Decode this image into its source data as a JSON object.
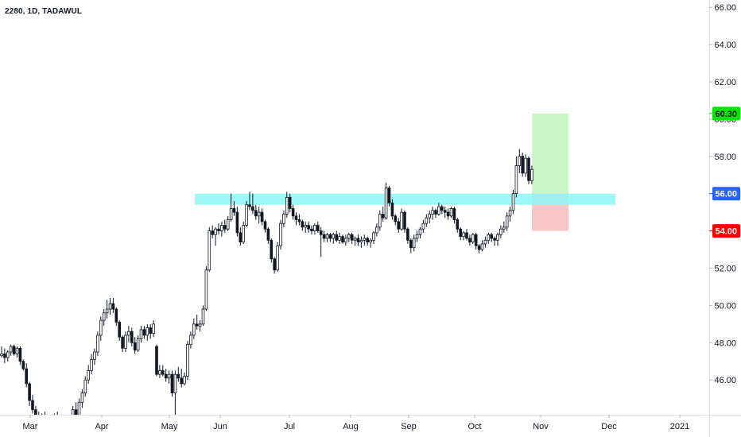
{
  "symbol_label": "2280, 1D, TADAWUL",
  "colors": {
    "up_border": "#131722",
    "down_fill": "#131722",
    "zone": "#8ef7f7",
    "profit": "#c8f7c5",
    "loss": "#f7c5c5",
    "target_tag": "#00e600",
    "entry_tag": "#2962ff",
    "stop_tag": "#ff0000"
  },
  "chart_data": {
    "type": "candlestick",
    "title": "",
    "y_ticks": [
      "46.00",
      "48.00",
      "50.00",
      "52.00",
      "54.00",
      "56.00",
      "58.00",
      "60.00",
      "62.00",
      "64.00",
      "66.00"
    ],
    "x_ticks": [
      "Mar",
      "Apr",
      "May",
      "Jun",
      "Jul",
      "Aug",
      "Sep",
      "Oct",
      "Nov",
      "Dec",
      "2021"
    ],
    "ylim": [
      44.1,
      66.2
    ],
    "price_tags": [
      {
        "label": "60.30",
        "value": 60.3,
        "role": "target"
      },
      {
        "label": "56.00",
        "value": 56.0,
        "role": "entry"
      },
      {
        "label": "54.00",
        "value": 54.0,
        "role": "stop"
      }
    ],
    "zone": {
      "from": 55.4,
      "to": 56.0
    },
    "position": {
      "entry": 56.0,
      "target": 60.3,
      "stop": 54.0
    },
    "candles": [
      [
        47.3,
        47.8,
        47.2,
        47.4
      ],
      [
        47.4,
        47.7,
        46.9,
        47.2
      ],
      [
        47.2,
        47.6,
        47.0,
        47.5
      ],
      [
        47.5,
        47.9,
        47.3,
        47.8
      ],
      [
        47.8,
        47.9,
        47.3,
        47.4
      ],
      [
        47.4,
        47.8,
        47.2,
        47.7
      ],
      [
        47.7,
        47.8,
        46.8,
        47.0
      ],
      [
        47.0,
        47.1,
        46.5,
        46.6
      ],
      [
        46.6,
        46.9,
        45.6,
        45.8
      ],
      [
        45.8,
        45.9,
        44.6,
        44.9
      ],
      [
        44.9,
        45.2,
        44.2,
        44.4
      ],
      [
        44.4,
        44.6,
        43.9,
        44.0
      ],
      [
        44.0,
        44.3,
        43.5,
        43.6
      ],
      [
        43.6,
        44.2,
        43.3,
        44.1
      ],
      [
        44.1,
        44.3,
        43.6,
        43.8
      ],
      [
        43.8,
        44.1,
        43.2,
        43.4
      ],
      [
        43.4,
        43.8,
        43.0,
        43.7
      ],
      [
        43.7,
        44.2,
        43.5,
        44.0
      ],
      [
        44.0,
        44.3,
        43.3,
        43.5
      ],
      [
        43.5,
        43.8,
        43.0,
        43.2
      ],
      [
        43.2,
        43.6,
        42.9,
        43.4
      ],
      [
        43.4,
        43.7,
        43.0,
        43.3
      ],
      [
        43.3,
        44.0,
        43.2,
        43.9
      ],
      [
        43.9,
        44.6,
        43.6,
        44.4
      ],
      [
        44.4,
        44.8,
        43.9,
        44.1
      ],
      [
        44.1,
        45.0,
        44.0,
        44.8
      ],
      [
        44.8,
        45.5,
        44.5,
        45.3
      ],
      [
        45.3,
        46.2,
        45.1,
        46.0
      ],
      [
        46.0,
        46.8,
        45.8,
        46.5
      ],
      [
        46.5,
        47.4,
        46.3,
        47.1
      ],
      [
        47.1,
        47.7,
        46.8,
        47.5
      ],
      [
        47.5,
        48.6,
        47.3,
        48.4
      ],
      [
        48.4,
        49.4,
        48.1,
        49.2
      ],
      [
        49.2,
        49.8,
        48.9,
        49.6
      ],
      [
        49.6,
        50.3,
        49.3,
        49.8
      ],
      [
        49.8,
        50.4,
        49.5,
        50.1
      ],
      [
        50.1,
        50.4,
        49.6,
        49.8
      ],
      [
        49.8,
        49.9,
        48.9,
        49.1
      ],
      [
        49.1,
        49.2,
        48.1,
        48.3
      ],
      [
        48.3,
        48.4,
        47.5,
        47.7
      ],
      [
        47.7,
        48.6,
        47.5,
        48.4
      ],
      [
        48.4,
        48.9,
        48.0,
        48.6
      ],
      [
        48.6,
        48.8,
        47.8,
        48.0
      ],
      [
        48.0,
        48.3,
        47.4,
        47.6
      ],
      [
        47.6,
        48.4,
        47.5,
        48.2
      ],
      [
        48.2,
        48.9,
        48.0,
        48.7
      ],
      [
        48.7,
        48.9,
        48.2,
        48.4
      ],
      [
        48.4,
        49.0,
        48.1,
        48.8
      ],
      [
        48.8,
        49.0,
        48.2,
        48.5
      ],
      [
        48.5,
        49.2,
        48.3,
        49.0
      ],
      [
        47.8,
        47.9,
        46.2,
        46.3
      ],
      [
        46.3,
        46.8,
        46.1,
        46.5
      ],
      [
        46.5,
        46.8,
        46.2,
        46.3
      ],
      [
        46.3,
        46.6,
        45.9,
        46.1
      ],
      [
        46.1,
        46.5,
        45.8,
        46.3
      ],
      [
        46.3,
        46.5,
        45.1,
        45.3
      ],
      [
        45.3,
        46.5,
        43.7,
        46.3
      ],
      [
        46.3,
        46.7,
        45.9,
        46.1
      ],
      [
        46.1,
        46.6,
        45.6,
        45.8
      ],
      [
        45.8,
        46.4,
        45.7,
        46.2
      ],
      [
        46.2,
        48.1,
        46.0,
        47.9
      ],
      [
        47.9,
        48.6,
        47.7,
        48.4
      ],
      [
        48.4,
        49.3,
        48.2,
        49.0
      ],
      [
        49.0,
        49.5,
        48.7,
        48.9
      ],
      [
        48.9,
        49.2,
        48.6,
        49.0
      ],
      [
        49.0,
        50.0,
        48.9,
        49.8
      ],
      [
        49.8,
        52.1,
        49.7,
        51.9
      ],
      [
        51.9,
        54.2,
        51.8,
        54.0
      ],
      [
        54.0,
        54.3,
        53.6,
        53.8
      ],
      [
        53.8,
        54.2,
        53.2,
        54.1
      ],
      [
        54.1,
        54.4,
        53.8,
        54.0
      ],
      [
        54.0,
        54.5,
        53.7,
        54.3
      ],
      [
        54.3,
        54.6,
        53.9,
        54.1
      ],
      [
        54.1,
        54.8,
        54.0,
        54.6
      ],
      [
        54.6,
        56.0,
        54.5,
        55.2
      ],
      [
        55.2,
        55.6,
        54.8,
        55.0
      ],
      [
        55.0,
        55.3,
        53.7,
        53.9
      ],
      [
        53.9,
        54.2,
        53.2,
        53.4
      ],
      [
        53.4,
        54.5,
        53.3,
        54.3
      ],
      [
        54.3,
        55.6,
        54.2,
        55.4
      ],
      [
        55.4,
        56.1,
        55.1,
        55.3
      ],
      [
        55.3,
        56.0,
        54.9,
        55.1
      ],
      [
        55.1,
        55.4,
        54.6,
        54.8
      ],
      [
        54.8,
        55.3,
        54.4,
        55.0
      ],
      [
        55.0,
        55.2,
        54.3,
        54.5
      ],
      [
        54.5,
        54.6,
        53.9,
        54.1
      ],
      [
        54.1,
        54.2,
        53.3,
        53.5
      ],
      [
        53.5,
        53.6,
        52.3,
        52.5
      ],
      [
        52.5,
        52.6,
        51.7,
        51.9
      ],
      [
        51.9,
        53.4,
        51.8,
        53.2
      ],
      [
        53.2,
        54.6,
        53.0,
        54.4
      ],
      [
        54.4,
        55.1,
        54.2,
        54.9
      ],
      [
        54.9,
        56.1,
        54.7,
        55.8
      ],
      [
        55.8,
        56.0,
        55.0,
        55.2
      ],
      [
        55.2,
        55.4,
        54.6,
        54.8
      ],
      [
        54.8,
        55.0,
        54.3,
        54.6
      ],
      [
        54.6,
        54.9,
        54.3,
        54.5
      ],
      [
        54.5,
        54.6,
        54.0,
        54.2
      ],
      [
        54.2,
        54.5,
        53.9,
        54.3
      ],
      [
        54.3,
        54.5,
        53.9,
        54.1
      ],
      [
        54.1,
        54.3,
        53.8,
        54.0
      ],
      [
        54.0,
        54.4,
        53.8,
        54.3
      ],
      [
        54.3,
        54.5,
        53.9,
        54.0
      ],
      [
        54.0,
        54.2,
        52.6,
        53.8
      ],
      [
        53.8,
        54.0,
        53.4,
        53.6
      ],
      [
        53.6,
        53.9,
        53.4,
        53.8
      ],
      [
        53.8,
        53.9,
        53.4,
        53.6
      ],
      [
        53.6,
        53.9,
        53.3,
        53.8
      ],
      [
        53.8,
        54.0,
        53.4,
        53.5
      ],
      [
        53.5,
        53.9,
        53.3,
        53.7
      ],
      [
        53.7,
        53.8,
        53.3,
        53.4
      ],
      [
        53.4,
        53.8,
        53.2,
        53.6
      ],
      [
        53.6,
        53.9,
        53.4,
        53.8
      ],
      [
        53.8,
        53.9,
        53.3,
        53.5
      ],
      [
        53.5,
        53.7,
        53.2,
        53.6
      ],
      [
        53.6,
        53.8,
        53.2,
        53.4
      ],
      [
        53.4,
        53.7,
        53.1,
        53.5
      ],
      [
        53.5,
        53.8,
        53.2,
        53.6
      ],
      [
        53.6,
        53.7,
        53.2,
        53.4
      ],
      [
        53.4,
        53.6,
        53.1,
        53.5
      ],
      [
        53.5,
        54.0,
        53.3,
        53.9
      ],
      [
        53.9,
        54.4,
        53.7,
        54.2
      ],
      [
        54.2,
        55.1,
        54.0,
        54.9
      ],
      [
        54.9,
        55.3,
        54.5,
        54.7
      ],
      [
        54.7,
        56.6,
        54.6,
        56.3
      ],
      [
        56.3,
        56.4,
        55.3,
        55.5
      ],
      [
        55.5,
        55.7,
        54.6,
        54.8
      ],
      [
        54.8,
        54.9,
        54.3,
        54.5
      ],
      [
        54.5,
        54.7,
        53.9,
        54.1
      ],
      [
        54.1,
        55.2,
        54.0,
        55.0
      ],
      [
        55.0,
        55.1,
        53.9,
        54.1
      ],
      [
        54.1,
        54.2,
        53.3,
        53.5
      ],
      [
        53.5,
        53.6,
        52.8,
        53.1
      ],
      [
        53.1,
        53.8,
        52.9,
        53.6
      ],
      [
        53.6,
        54.0,
        53.4,
        53.8
      ],
      [
        53.8,
        54.2,
        53.6,
        54.1
      ],
      [
        54.1,
        54.6,
        53.9,
        54.4
      ],
      [
        54.4,
        54.9,
        54.2,
        54.7
      ],
      [
        54.7,
        55.1,
        54.4,
        54.9
      ],
      [
        54.9,
        55.3,
        54.6,
        55.1
      ],
      [
        55.1,
        55.2,
        54.7,
        54.9
      ],
      [
        54.9,
        55.5,
        54.8,
        55.3
      ],
      [
        55.3,
        55.4,
        54.9,
        55.1
      ],
      [
        55.1,
        55.3,
        54.7,
        55.0
      ],
      [
        55.0,
        55.2,
        54.6,
        54.8
      ],
      [
        54.8,
        55.3,
        54.7,
        55.2
      ],
      [
        55.2,
        55.3,
        54.4,
        54.6
      ],
      [
        54.6,
        54.7,
        53.9,
        54.1
      ],
      [
        54.1,
        54.2,
        53.5,
        53.7
      ],
      [
        53.7,
        54.0,
        53.5,
        53.9
      ],
      [
        53.9,
        54.1,
        53.5,
        53.6
      ],
      [
        53.6,
        53.8,
        53.2,
        53.4
      ],
      [
        53.4,
        53.9,
        53.3,
        53.8
      ],
      [
        53.8,
        53.9,
        53.0,
        53.2
      ],
      [
        53.2,
        53.3,
        52.8,
        53.0
      ],
      [
        53.0,
        53.5,
        52.9,
        53.3
      ],
      [
        53.3,
        53.7,
        53.1,
        53.5
      ],
      [
        53.5,
        53.9,
        53.3,
        53.8
      ],
      [
        53.8,
        53.9,
        53.4,
        53.6
      ],
      [
        53.6,
        53.7,
        53.2,
        53.5
      ],
      [
        53.5,
        53.9,
        53.2,
        53.8
      ],
      [
        53.8,
        54.3,
        53.6,
        54.1
      ],
      [
        54.1,
        54.5,
        53.9,
        54.2
      ],
      [
        54.2,
        55.0,
        54.0,
        54.8
      ],
      [
        54.8,
        55.3,
        54.5,
        55.1
      ],
      [
        55.1,
        56.2,
        54.9,
        56.0
      ],
      [
        56.0,
        58.0,
        55.8,
        57.5
      ],
      [
        57.5,
        58.4,
        57.1,
        58.0
      ],
      [
        58.0,
        58.2,
        56.9,
        57.1
      ],
      [
        57.1,
        58.1,
        56.9,
        57.9
      ],
      [
        57.9,
        58.0,
        56.5,
        56.7
      ],
      [
        56.7,
        57.5,
        56.5,
        57.3
      ]
    ]
  }
}
